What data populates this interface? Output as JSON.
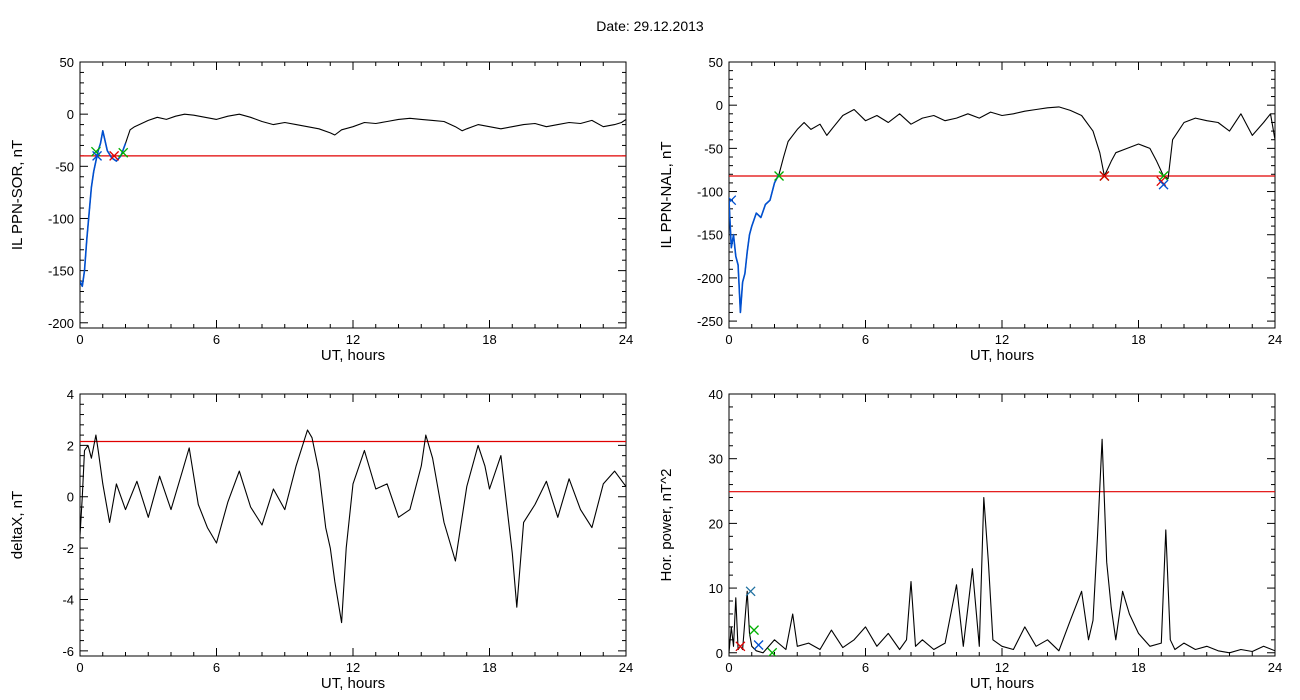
{
  "header": {
    "date_label": "Date:  29.12.2013"
  },
  "chart_data": [
    {
      "id": "sor",
      "type": "line",
      "xlabel": "UT, hours",
      "ylabel": "IL PPN-SOR, nT",
      "xlim": [
        0,
        24
      ],
      "ylim": [
        -205,
        50
      ],
      "xticks": [
        0,
        6,
        12,
        18,
        24
      ],
      "yticks": [
        -200,
        -150,
        -100,
        -50,
        0,
        50
      ],
      "grid": false,
      "threshold": -40,
      "colors": {
        "main": "#000000",
        "highlight": "#0050d0",
        "threshold": "#e00000"
      },
      "series": [
        {
          "x": [
            0.0,
            0.1,
            0.2,
            0.3,
            0.4,
            0.5,
            0.6,
            0.7,
            0.8,
            0.9,
            1.0,
            1.2,
            1.4,
            1.6,
            1.8,
            2.0,
            2.2,
            2.4,
            2.6,
            3.0,
            3.4,
            3.8,
            4.2,
            4.6,
            5.0,
            5.5,
            6.0,
            6.5,
            7.0,
            7.5,
            8.0,
            8.5,
            9.0,
            9.5,
            10.0,
            10.5,
            11.0,
            11.2,
            11.5,
            12.0,
            12.5,
            13.0,
            13.5,
            14.0,
            14.5,
            15.0,
            15.5,
            16.0,
            16.5,
            16.8,
            17.0,
            17.5,
            18.0,
            18.5,
            19.0,
            19.5,
            20.0,
            20.5,
            21.0,
            21.5,
            22.0,
            22.5,
            23.0,
            23.5,
            23.8,
            24.0
          ],
          "y": [
            -160,
            -165,
            -150,
            -120,
            -95,
            -70,
            -55,
            -45,
            -35,
            -28,
            -16,
            -35,
            -42,
            -45,
            -40,
            -28,
            -15,
            -12,
            -10,
            -6,
            -3,
            -5,
            -2,
            0,
            -1,
            -3,
            -5,
            -2,
            0,
            -3,
            -7,
            -10,
            -8,
            -10,
            -12,
            -14,
            -18,
            -20,
            -15,
            -12,
            -8,
            -9,
            -7,
            -5,
            -4,
            -5,
            -6,
            -7,
            -12,
            -16,
            -14,
            -10,
            -12,
            -14,
            -12,
            -10,
            -9,
            -12,
            -10,
            -8,
            -9,
            -6,
            -12,
            -10,
            -8,
            -5
          ]
        }
      ],
      "highlight_range": [
        0.0,
        2.0
      ],
      "markers": [
        {
          "x": 0.7,
          "y": -36,
          "color": "#00b000"
        },
        {
          "x": 1.9,
          "y": -37,
          "color": "#00b000"
        },
        {
          "x": 1.5,
          "y": -40,
          "color": "#e00000"
        },
        {
          "x": 0.75,
          "y": -40,
          "color": "#0050d0"
        }
      ]
    },
    {
      "id": "nal",
      "type": "line",
      "xlabel": "UT, hours",
      "ylabel": "IL PPN-NAL, nT",
      "xlim": [
        0,
        24
      ],
      "ylim": [
        -258,
        50
      ],
      "xticks": [
        0,
        6,
        12,
        18,
        24
      ],
      "yticks": [
        -250,
        -200,
        -150,
        -100,
        -50,
        0,
        50
      ],
      "grid": false,
      "threshold": -82,
      "colors": {
        "main": "#000000",
        "highlight": "#0050d0",
        "threshold": "#e00000"
      },
      "series": [
        {
          "x": [
            0.0,
            0.1,
            0.2,
            0.3,
            0.4,
            0.5,
            0.6,
            0.7,
            0.8,
            0.9,
            1.0,
            1.2,
            1.4,
            1.6,
            1.8,
            2.0,
            2.2,
            2.4,
            2.6,
            2.8,
            3.0,
            3.3,
            3.6,
            4.0,
            4.3,
            4.6,
            5.0,
            5.5,
            6.0,
            6.5,
            7.0,
            7.5,
            8.0,
            8.5,
            9.0,
            9.5,
            10.0,
            10.5,
            11.0,
            11.5,
            12.0,
            12.5,
            13.0,
            13.5,
            14.0,
            14.5,
            15.0,
            15.5,
            16.0,
            16.3,
            16.5,
            16.8,
            17.0,
            17.5,
            18.0,
            18.5,
            18.8,
            19.1,
            19.3,
            19.5,
            20.0,
            20.5,
            21.0,
            21.5,
            22.0,
            22.5,
            23.0,
            23.5,
            23.8,
            24.0
          ],
          "y": [
            -110,
            -165,
            -150,
            -175,
            -185,
            -240,
            -205,
            -195,
            -170,
            -150,
            -140,
            -125,
            -130,
            -115,
            -110,
            -90,
            -80,
            -60,
            -42,
            -35,
            -28,
            -20,
            -28,
            -22,
            -35,
            -25,
            -12,
            -5,
            -18,
            -12,
            -20,
            -10,
            -22,
            -15,
            -12,
            -18,
            -15,
            -10,
            -15,
            -8,
            -12,
            -10,
            -7,
            -5,
            -3,
            -2,
            -6,
            -12,
            -30,
            -55,
            -82,
            -65,
            -55,
            -50,
            -45,
            -50,
            -65,
            -82,
            -85,
            -40,
            -20,
            -15,
            -18,
            -20,
            -30,
            -10,
            -35,
            -20,
            -10,
            -40
          ]
        }
      ],
      "highlight_range": [
        0.0,
        2.2
      ],
      "markers": [
        {
          "x": 2.2,
          "y": -82,
          "color": "#00b000"
        },
        {
          "x": 16.5,
          "y": -82,
          "color": "#00b000"
        },
        {
          "x": 19.1,
          "y": -82,
          "color": "#00b000"
        },
        {
          "x": 16.5,
          "y": -82,
          "color": "#e00000"
        },
        {
          "x": 19.0,
          "y": -88,
          "color": "#e00000"
        },
        {
          "x": 19.1,
          "y": -92,
          "color": "#0050d0"
        },
        {
          "x": 0.1,
          "y": -110,
          "color": "#0050d0"
        }
      ]
    },
    {
      "id": "deltax",
      "type": "line",
      "xlabel": "UT, hours",
      "ylabel": "deltaX, nT",
      "xlim": [
        0,
        24
      ],
      "ylim": [
        -6.2,
        4
      ],
      "xticks": [
        0,
        6,
        12,
        18,
        24
      ],
      "yticks": [
        -6,
        -4,
        -2,
        0,
        2,
        4
      ],
      "grid": false,
      "threshold": 2.15,
      "colors": {
        "main": "#000000",
        "threshold": "#e00000"
      },
      "series": [
        {
          "x": [
            0.0,
            0.1,
            0.2,
            0.35,
            0.5,
            0.7,
            0.8,
            1.0,
            1.3,
            1.6,
            2.0,
            2.5,
            3.0,
            3.5,
            4.0,
            4.5,
            4.8,
            5.2,
            5.6,
            6.0,
            6.5,
            7.0,
            7.5,
            8.0,
            8.5,
            9.0,
            9.5,
            10.0,
            10.2,
            10.5,
            10.8,
            11.0,
            11.2,
            11.5,
            11.7,
            12.0,
            12.5,
            13.0,
            13.5,
            14.0,
            14.5,
            15.0,
            15.2,
            15.5,
            16.0,
            16.5,
            17.0,
            17.5,
            17.8,
            18.0,
            18.5,
            19.0,
            19.2,
            19.5,
            20.0,
            20.5,
            21.0,
            21.5,
            22.0,
            22.5,
            23.0,
            23.5,
            24.0
          ],
          "y": [
            -1.5,
            0.0,
            1.8,
            2.0,
            1.5,
            2.4,
            1.8,
            0.5,
            -1.0,
            0.5,
            -0.5,
            0.6,
            -0.8,
            0.8,
            -0.5,
            1.0,
            1.9,
            -0.3,
            -1.2,
            -1.8,
            -0.2,
            1.0,
            -0.4,
            -1.1,
            0.3,
            -0.5,
            1.2,
            2.6,
            2.3,
            1.0,
            -1.2,
            -2.0,
            -3.3,
            -4.9,
            -2.0,
            0.5,
            1.8,
            0.3,
            0.5,
            -0.8,
            -0.5,
            1.2,
            2.4,
            1.5,
            -1.0,
            -2.5,
            0.4,
            2.0,
            1.2,
            0.3,
            1.6,
            -2.2,
            -4.3,
            -1.0,
            -0.3,
            0.6,
            -0.8,
            0.7,
            -0.5,
            -1.2,
            0.5,
            1.0,
            0.4
          ]
        }
      ],
      "markers": []
    },
    {
      "id": "power",
      "type": "line",
      "xlabel": "UT, hours",
      "ylabel": "Hor. power, nT^2",
      "xlim": [
        0,
        24
      ],
      "ylim": [
        -0.5,
        40
      ],
      "xticks": [
        0,
        6,
        12,
        18,
        24
      ],
      "yticks": [
        0,
        10,
        20,
        30,
        40
      ],
      "grid": false,
      "threshold": 24.9,
      "colors": {
        "main": "#000000",
        "threshold": "#e00000"
      },
      "series": [
        {
          "x": [
            0.0,
            0.1,
            0.2,
            0.3,
            0.4,
            0.5,
            0.6,
            0.8,
            0.9,
            1.0,
            1.2,
            1.5,
            2.0,
            2.5,
            2.8,
            3.0,
            3.5,
            4.0,
            4.5,
            5.0,
            5.5,
            6.0,
            6.5,
            7.0,
            7.5,
            7.8,
            8.0,
            8.2,
            8.5,
            9.0,
            9.5,
            10.0,
            10.3,
            10.5,
            10.7,
            11.0,
            11.2,
            11.4,
            11.6,
            12.0,
            12.5,
            13.0,
            13.5,
            14.0,
            14.5,
            15.0,
            15.5,
            15.8,
            16.0,
            16.2,
            16.4,
            16.6,
            16.8,
            17.0,
            17.3,
            17.6,
            18.0,
            18.5,
            19.0,
            19.2,
            19.4,
            19.6,
            20.0,
            20.5,
            21.0,
            21.5,
            22.0,
            22.5,
            23.0,
            23.5,
            24.0
          ],
          "y": [
            0.0,
            4.0,
            1.0,
            8.5,
            0.5,
            1.0,
            0.5,
            9.5,
            3.0,
            1.0,
            0.3,
            0.0,
            2.0,
            0.5,
            6.0,
            1.0,
            1.5,
            0.5,
            3.5,
            0.8,
            2.0,
            4.0,
            1.0,
            3.0,
            0.5,
            2.0,
            11.0,
            1.0,
            2.0,
            0.5,
            1.5,
            10.5,
            1.0,
            7.0,
            13.0,
            1.0,
            24.0,
            14.0,
            2.0,
            1.0,
            0.5,
            4.0,
            1.0,
            2.0,
            0.3,
            5.0,
            9.5,
            2.0,
            5.0,
            18.0,
            33.0,
            14.0,
            7.0,
            2.0,
            9.5,
            6.0,
            3.0,
            1.0,
            1.5,
            19.0,
            2.0,
            0.5,
            1.5,
            0.5,
            1.0,
            0.3,
            0.0,
            0.5,
            0.2,
            1.0,
            0.3
          ]
        }
      ],
      "markers": [
        {
          "x": 0.95,
          "y": 9.5,
          "color": "#2070a0"
        },
        {
          "x": 1.1,
          "y": 3.5,
          "color": "#00b000"
        },
        {
          "x": 1.9,
          "y": 0.0,
          "color": "#00b000"
        },
        {
          "x": 0.5,
          "y": 1.0,
          "color": "#e00000"
        },
        {
          "x": 1.3,
          "y": 1.2,
          "color": "#0050d0"
        }
      ]
    }
  ]
}
